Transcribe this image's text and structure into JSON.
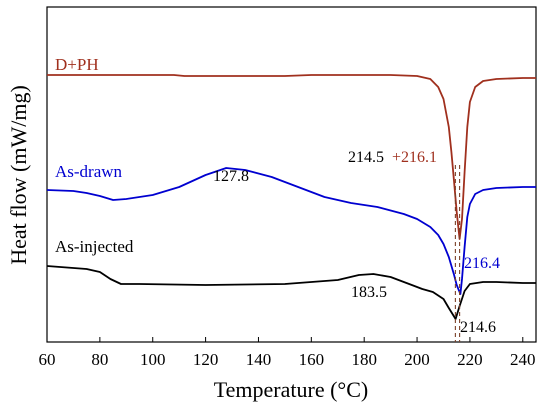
{
  "chart_data": {
    "type": "line",
    "title": "",
    "xlabel": "Temperature (°C)",
    "ylabel": "Heat flow (mW/mg)",
    "xlim": [
      60,
      245
    ],
    "xticks": [
      60,
      80,
      100,
      120,
      140,
      160,
      180,
      200,
      220,
      240
    ],
    "grid": false,
    "y_tick_labels": false,
    "series": [
      {
        "name": "D+PH",
        "color": "#a0301e",
        "x": [
          60,
          100,
          108,
          112,
          130,
          150,
          160,
          170,
          180,
          190,
          200,
          205,
          208,
          210,
          212,
          213,
          214,
          215,
          216.1,
          217,
          218,
          219,
          220,
          222,
          225,
          230,
          240,
          245
        ],
        "y": [
          68,
          68,
          68,
          69,
          69,
          69,
          68,
          68,
          68,
          68,
          69,
          72,
          80,
          92,
          120,
          145,
          175,
          205,
          232,
          212,
          165,
          120,
          95,
          80,
          74,
          72,
          71,
          71
        ]
      },
      {
        "name": "As-drawn",
        "color": "#0000d0",
        "x": [
          60,
          70,
          75,
          80,
          85,
          90,
          100,
          110,
          120,
          127.8,
          135,
          145,
          155,
          165,
          175,
          185,
          195,
          200,
          205,
          208,
          210,
          212,
          214,
          215,
          216.4,
          217,
          218,
          219,
          220,
          222,
          225,
          230,
          240,
          245
        ],
        "y": [
          183,
          184,
          186,
          189,
          193,
          192,
          188,
          180,
          168,
          161,
          163,
          170,
          180,
          190,
          196,
          200,
          207,
          212,
          220,
          228,
          237,
          250,
          268,
          278,
          287,
          272,
          240,
          210,
          197,
          187,
          183,
          181,
          180,
          180
        ]
      },
      {
        "name": "As-injected",
        "color": "#000000",
        "x": [
          60,
          75,
          80,
          84,
          88,
          95,
          120,
          150,
          170,
          178,
          183.5,
          190,
          198,
          202,
          206,
          210,
          212,
          214.6,
          216,
          218,
          220,
          225,
          230,
          240,
          245
        ],
        "y": [
          259,
          262,
          265,
          272,
          277,
          277,
          278,
          277,
          273,
          268,
          267,
          270,
          278,
          282,
          285,
          292,
          301,
          312,
          300,
          284,
          277,
          275,
          275,
          276,
          276
        ]
      }
    ],
    "annotations": [
      {
        "text": "127.8",
        "color": "#000000"
      },
      {
        "text": "214.5",
        "color": "#000000"
      },
      {
        "text": "+216.1",
        "color": "#a0301e"
      },
      {
        "text": "216.4",
        "color": "#0000d0"
      },
      {
        "text": "183.5",
        "color": "#000000"
      },
      {
        "text": "214.6",
        "color": "#000000"
      }
    ],
    "dashed_markers_x": [
      214.5,
      216.1
    ],
    "dashed_color": "#7a4028"
  }
}
